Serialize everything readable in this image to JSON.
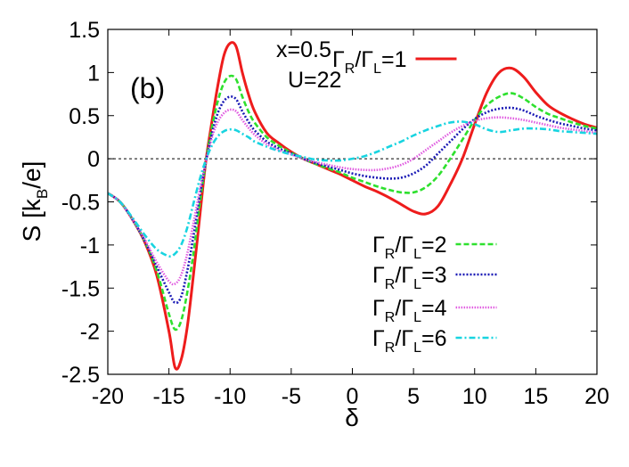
{
  "chart_data": {
    "type": "line",
    "panel_label": "(b)",
    "annotations": [
      "x=0.5",
      "U=22"
    ],
    "xlabel": "δ",
    "ylabel": {
      "main": "S [k",
      "sub": "B",
      "tail": "/e]"
    },
    "xlim": [
      -20,
      20
    ],
    "ylim": [
      -2.5,
      1.5
    ],
    "xticks": [
      -20,
      -15,
      -10,
      -5,
      0,
      5,
      10,
      15,
      20
    ],
    "yticks": [
      1.5,
      1,
      0.5,
      0,
      -0.5,
      -1,
      -1.5,
      -2,
      -2.5
    ],
    "zero_line": true,
    "grid": false,
    "x": [
      -20,
      -19,
      -18,
      -17,
      -16,
      -15,
      -14.5,
      -14,
      -13.5,
      -13,
      -12.5,
      -12,
      -11.5,
      -11,
      -10.5,
      -10,
      -9.5,
      -9,
      -8.5,
      -8,
      -7,
      -6,
      -5,
      -4,
      -3,
      -2,
      -1,
      0,
      1,
      2,
      3,
      4,
      5,
      6,
      7,
      8,
      9,
      10,
      11,
      12,
      13,
      14,
      15,
      16,
      17,
      18,
      19,
      20
    ],
    "series": [
      {
        "name": "Γ_R/Γ_L=1",
        "legend": {
          "g1": "Γ",
          "s1": "R",
          "g2": "/Γ",
          "s2": "L",
          "tail": "=1"
        },
        "color": "#ee1c1c",
        "dash": "",
        "values": [
          -0.4,
          -0.5,
          -0.7,
          -0.96,
          -1.35,
          -2.0,
          -2.42,
          -2.33,
          -1.95,
          -1.35,
          -0.7,
          -0.05,
          0.42,
          0.85,
          1.2,
          1.34,
          1.3,
          1.0,
          0.75,
          0.55,
          0.3,
          0.18,
          0.08,
          0.0,
          -0.06,
          -0.12,
          -0.18,
          -0.25,
          -0.32,
          -0.38,
          -0.45,
          -0.53,
          -0.61,
          -0.64,
          -0.55,
          -0.3,
          0.0,
          0.4,
          0.77,
          1.0,
          1.05,
          0.95,
          0.77,
          0.62,
          0.53,
          0.46,
          0.4,
          0.36
        ]
      },
      {
        "name": "Γ_R/Γ_L=2",
        "legend": {
          "g1": "Γ",
          "s1": "R",
          "g2": "/Γ",
          "s2": "L",
          "tail": "=2"
        },
        "color": "#2ee02e",
        "dash": "6 3",
        "values": [
          -0.4,
          -0.5,
          -0.7,
          -0.95,
          -1.3,
          -1.8,
          -1.98,
          -1.88,
          -1.55,
          -1.1,
          -0.55,
          -0.05,
          0.35,
          0.67,
          0.88,
          0.96,
          0.92,
          0.72,
          0.55,
          0.42,
          0.25,
          0.15,
          0.07,
          0.0,
          -0.06,
          -0.11,
          -0.16,
          -0.22,
          -0.27,
          -0.32,
          -0.36,
          -0.39,
          -0.39,
          -0.33,
          -0.2,
          0.0,
          0.22,
          0.45,
          0.62,
          0.72,
          0.76,
          0.7,
          0.6,
          0.52,
          0.47,
          0.42,
          0.38,
          0.35
        ]
      },
      {
        "name": "Γ_R/Γ_L=3",
        "legend": {
          "g1": "Γ",
          "s1": "R",
          "g2": "/Γ",
          "s2": "L",
          "tail": "=3"
        },
        "color": "#1a1ab5",
        "dash": "2 2",
        "values": [
          -0.4,
          -0.5,
          -0.7,
          -0.95,
          -1.25,
          -1.55,
          -1.67,
          -1.6,
          -1.3,
          -0.9,
          -0.45,
          -0.05,
          0.28,
          0.53,
          0.67,
          0.72,
          0.69,
          0.55,
          0.43,
          0.33,
          0.2,
          0.12,
          0.06,
          0.0,
          -0.05,
          -0.09,
          -0.13,
          -0.17,
          -0.2,
          -0.22,
          -0.23,
          -0.22,
          -0.17,
          -0.08,
          0.06,
          0.2,
          0.34,
          0.46,
          0.54,
          0.58,
          0.59,
          0.56,
          0.5,
          0.45,
          0.41,
          0.38,
          0.35,
          0.33
        ]
      },
      {
        "name": "Γ_R/Γ_L=4",
        "legend": {
          "g1": "Γ",
          "s1": "R",
          "g2": "/Γ",
          "s2": "L",
          "tail": "=4"
        },
        "color": "#e05ae0",
        "dash": "1.5 1.5",
        "values": [
          -0.4,
          -0.5,
          -0.7,
          -0.93,
          -1.2,
          -1.42,
          -1.45,
          -1.35,
          -1.1,
          -0.75,
          -0.38,
          -0.05,
          0.24,
          0.43,
          0.53,
          0.57,
          0.55,
          0.45,
          0.36,
          0.28,
          0.17,
          0.1,
          0.05,
          0.0,
          -0.04,
          -0.07,
          -0.1,
          -0.12,
          -0.13,
          -0.13,
          -0.11,
          -0.07,
          0.0,
          0.1,
          0.2,
          0.3,
          0.38,
          0.44,
          0.47,
          0.48,
          0.47,
          0.45,
          0.42,
          0.39,
          0.36,
          0.34,
          0.32,
          0.3
        ]
      },
      {
        "name": "Γ_R/Γ_L=6",
        "legend": {
          "g1": "Γ",
          "s1": "R",
          "g2": "/Γ",
          "s2": "L",
          "tail": "=6"
        },
        "color": "#18d4e0",
        "dash": "7 3 2 3",
        "values": [
          -0.4,
          -0.5,
          -0.68,
          -0.88,
          -1.05,
          -1.13,
          -1.1,
          -1.0,
          -0.8,
          -0.52,
          -0.25,
          -0.02,
          0.15,
          0.26,
          0.32,
          0.34,
          0.33,
          0.29,
          0.25,
          0.2,
          0.14,
          0.09,
          0.05,
          0.02,
          -0.01,
          -0.02,
          -0.02,
          0.0,
          0.03,
          0.08,
          0.14,
          0.2,
          0.27,
          0.33,
          0.38,
          0.42,
          0.43,
          0.4,
          0.34,
          0.31,
          0.33,
          0.35,
          0.35,
          0.34,
          0.32,
          0.31,
          0.3,
          0.29
        ]
      }
    ]
  }
}
